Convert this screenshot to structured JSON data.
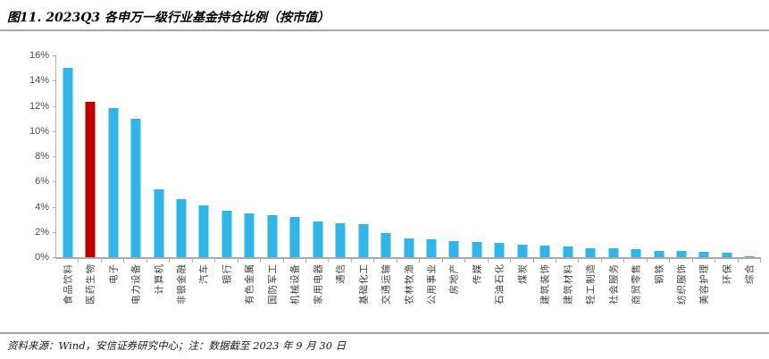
{
  "title": "图11. 2023Q3 各申万一级行业基金持仓比例（按市值）",
  "footer": "资料来源：Wind，安信证券研究中心；注：数据截至 2023 年 9 月 30 日",
  "colors": {
    "bar_blue": "#2eb6e8",
    "bar_red": "#c00000",
    "axis_line": "#a9a9a9",
    "separator": "#a6a6a6",
    "tick_label": "#4d4d4d"
  },
  "chart_data": {
    "type": "bar",
    "title": "图11. 2023Q3 各申万一级行业基金持仓比例（按市值）",
    "xlabel": "",
    "ylabel": "",
    "ylim": [
      0,
      16
    ],
    "ytick_step": 2,
    "ytick_labels": [
      "0%",
      "2%",
      "4%",
      "6%",
      "8%",
      "10%",
      "12%",
      "14%",
      "16%"
    ],
    "grid": false,
    "legend": "none",
    "bar_color": "#2eb6e8",
    "highlight_color": "#c00000",
    "highlight_index": 1,
    "categories": [
      "食品饮料",
      "医药生物",
      "电子",
      "电力设备",
      "计算机",
      "非银金融",
      "汽车",
      "银行",
      "有色金属",
      "国防军工",
      "机械设备",
      "家用电器",
      "通信",
      "基础化工",
      "交通运输",
      "农林牧渔",
      "公用事业",
      "房地产",
      "传媒",
      "石油石化",
      "煤炭",
      "建筑装饰",
      "建筑材料",
      "轻工制造",
      "社会服务",
      "商贸零售",
      "钢铁",
      "纺织服饰",
      "美容护理",
      "环保",
      "综合"
    ],
    "values": [
      15.0,
      12.3,
      11.8,
      11.0,
      5.4,
      4.6,
      4.1,
      3.7,
      3.5,
      3.3,
      3.2,
      2.8,
      2.7,
      2.6,
      1.9,
      1.5,
      1.4,
      1.3,
      1.2,
      1.1,
      1.0,
      0.9,
      0.85,
      0.7,
      0.7,
      0.65,
      0.5,
      0.5,
      0.45,
      0.35,
      0.05
    ],
    "unit": "%"
  }
}
